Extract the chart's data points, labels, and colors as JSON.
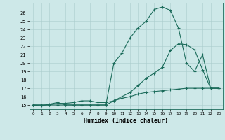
{
  "title": "",
  "xlabel": "Humidex (Indice chaleur)",
  "bg_color": "#cde8e8",
  "line_color": "#1a6b5a",
  "grid_color": "#aacccc",
  "xlim": [
    -0.5,
    23.5
  ],
  "ylim": [
    14.5,
    27.2
  ],
  "xticks": [
    0,
    1,
    2,
    3,
    4,
    5,
    6,
    7,
    8,
    9,
    10,
    11,
    12,
    13,
    14,
    15,
    16,
    17,
    18,
    19,
    20,
    21,
    22,
    23
  ],
  "yticks": [
    15,
    16,
    17,
    18,
    19,
    20,
    21,
    22,
    23,
    24,
    25,
    26
  ],
  "s1_x": [
    0,
    1,
    2,
    3,
    4,
    5,
    6,
    7,
    8,
    9,
    10,
    11,
    12,
    13,
    14,
    15,
    16,
    17,
    18,
    19,
    20,
    21,
    22,
    23
  ],
  "s1_y": [
    15,
    14.9,
    15.1,
    15.3,
    15.0,
    15.0,
    15.0,
    15.0,
    15.0,
    15.0,
    20.0,
    21.2,
    23.0,
    24.2,
    25.0,
    26.4,
    26.7,
    26.3,
    24.2,
    20.0,
    19.0,
    21.0,
    17.0,
    17.0
  ],
  "s2_x": [
    0,
    1,
    2,
    3,
    4,
    5,
    6,
    7,
    8,
    9,
    10,
    11,
    12,
    13,
    14,
    15,
    16,
    17,
    18,
    19,
    20,
    21,
    22,
    23
  ],
  "s2_y": [
    15,
    15,
    15,
    15,
    15,
    15,
    15,
    15,
    15,
    15,
    15.5,
    16.0,
    16.5,
    17.3,
    18.2,
    18.8,
    19.5,
    21.5,
    22.3,
    22.2,
    21.6,
    19.2,
    17.0,
    17.0
  ],
  "s3_x": [
    0,
    1,
    2,
    3,
    4,
    5,
    6,
    7,
    8,
    9,
    10,
    11,
    12,
    13,
    14,
    15,
    16,
    17,
    18,
    19,
    20,
    21,
    22,
    23
  ],
  "s3_y": [
    15,
    15,
    15,
    15.2,
    15.2,
    15.3,
    15.5,
    15.5,
    15.3,
    15.3,
    15.5,
    15.8,
    16.0,
    16.3,
    16.5,
    16.6,
    16.7,
    16.8,
    16.9,
    17.0,
    17.0,
    17.0,
    17.0,
    17.0
  ]
}
